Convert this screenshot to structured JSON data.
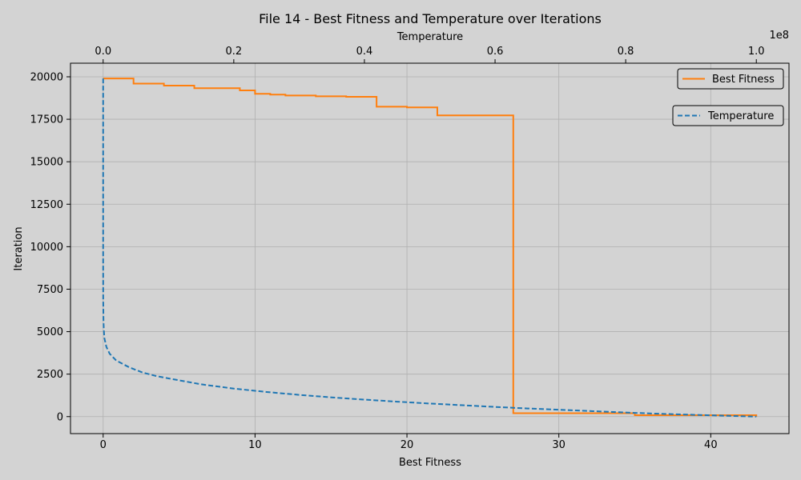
{
  "chart_data": {
    "type": "line",
    "title": "File 14 - Best Fitness and Temperature over Iterations",
    "xlabel": "Best Fitness",
    "ylabel": "Iteration",
    "x2label": "Temperature",
    "x2_multiplier_label": "1e8",
    "xlim": [
      -2.15,
      45.15
    ],
    "x2lim": [
      -0.05,
      1.05
    ],
    "ylim": [
      -1000,
      20800
    ],
    "xticks": [
      0,
      10,
      20,
      30,
      40
    ],
    "x2ticks": [
      0.0,
      0.2,
      0.4,
      0.6,
      0.8,
      1.0
    ],
    "x2ticklabels": [
      "0.0",
      "0.2",
      "0.4",
      "0.6",
      "0.8",
      "1.0"
    ],
    "yticks": [
      0,
      2500,
      5000,
      7500,
      10000,
      12500,
      15000,
      17500,
      20000
    ],
    "grid": true,
    "background": "#d3d3d3",
    "series": [
      {
        "name": "Best Fitness",
        "axis": "bottom",
        "style": "step",
        "color": "#ff7f0e",
        "dash": "solid",
        "legend_position": "upper right",
        "points": [
          [
            0,
            19900
          ],
          [
            2,
            19900
          ],
          [
            2,
            19600
          ],
          [
            4,
            19600
          ],
          [
            4,
            19480
          ],
          [
            6,
            19480
          ],
          [
            6,
            19330
          ],
          [
            9,
            19330
          ],
          [
            9,
            19200
          ],
          [
            10,
            19200
          ],
          [
            10,
            19000
          ],
          [
            11,
            19000
          ],
          [
            11,
            18950
          ],
          [
            12,
            18950
          ],
          [
            12,
            18900
          ],
          [
            14,
            18900
          ],
          [
            14,
            18850
          ],
          [
            16,
            18850
          ],
          [
            16,
            18820
          ],
          [
            18,
            18820
          ],
          [
            18,
            18240
          ],
          [
            20,
            18240
          ],
          [
            20,
            18200
          ],
          [
            22,
            18200
          ],
          [
            22,
            17730
          ],
          [
            27,
            17730
          ],
          [
            27,
            200
          ],
          [
            35,
            200
          ],
          [
            35,
            80
          ],
          [
            43,
            80
          ],
          [
            43,
            0
          ]
        ]
      },
      {
        "name": "Temperature",
        "axis": "top",
        "style": "line",
        "color": "#1f77b4",
        "dash": "dashed",
        "legend_position": "right, below first legend",
        "points": [
          [
            0,
            19900
          ],
          [
            1e-06,
            12000
          ],
          [
            1e-05,
            9200
          ],
          [
            0.0001,
            6900
          ],
          [
            0.0005,
            5700
          ],
          [
            0.001,
            5100
          ],
          [
            0.002,
            4600
          ],
          [
            0.005,
            4100
          ],
          [
            0.01,
            3700
          ],
          [
            0.02,
            3300
          ],
          [
            0.04,
            2900
          ],
          [
            0.06,
            2600
          ],
          [
            0.08,
            2400
          ],
          [
            0.1,
            2250
          ],
          [
            0.15,
            1900
          ],
          [
            0.2,
            1650
          ],
          [
            0.25,
            1450
          ],
          [
            0.3,
            1280
          ],
          [
            0.35,
            1130
          ],
          [
            0.4,
            1000
          ],
          [
            0.45,
            880
          ],
          [
            0.5,
            770
          ],
          [
            0.55,
            670
          ],
          [
            0.6,
            570
          ],
          [
            0.65,
            480
          ],
          [
            0.7,
            400
          ],
          [
            0.75,
            320
          ],
          [
            0.8,
            240
          ],
          [
            0.85,
            170
          ],
          [
            0.9,
            110
          ],
          [
            0.95,
            55
          ],
          [
            1.0,
            0
          ]
        ]
      }
    ]
  }
}
